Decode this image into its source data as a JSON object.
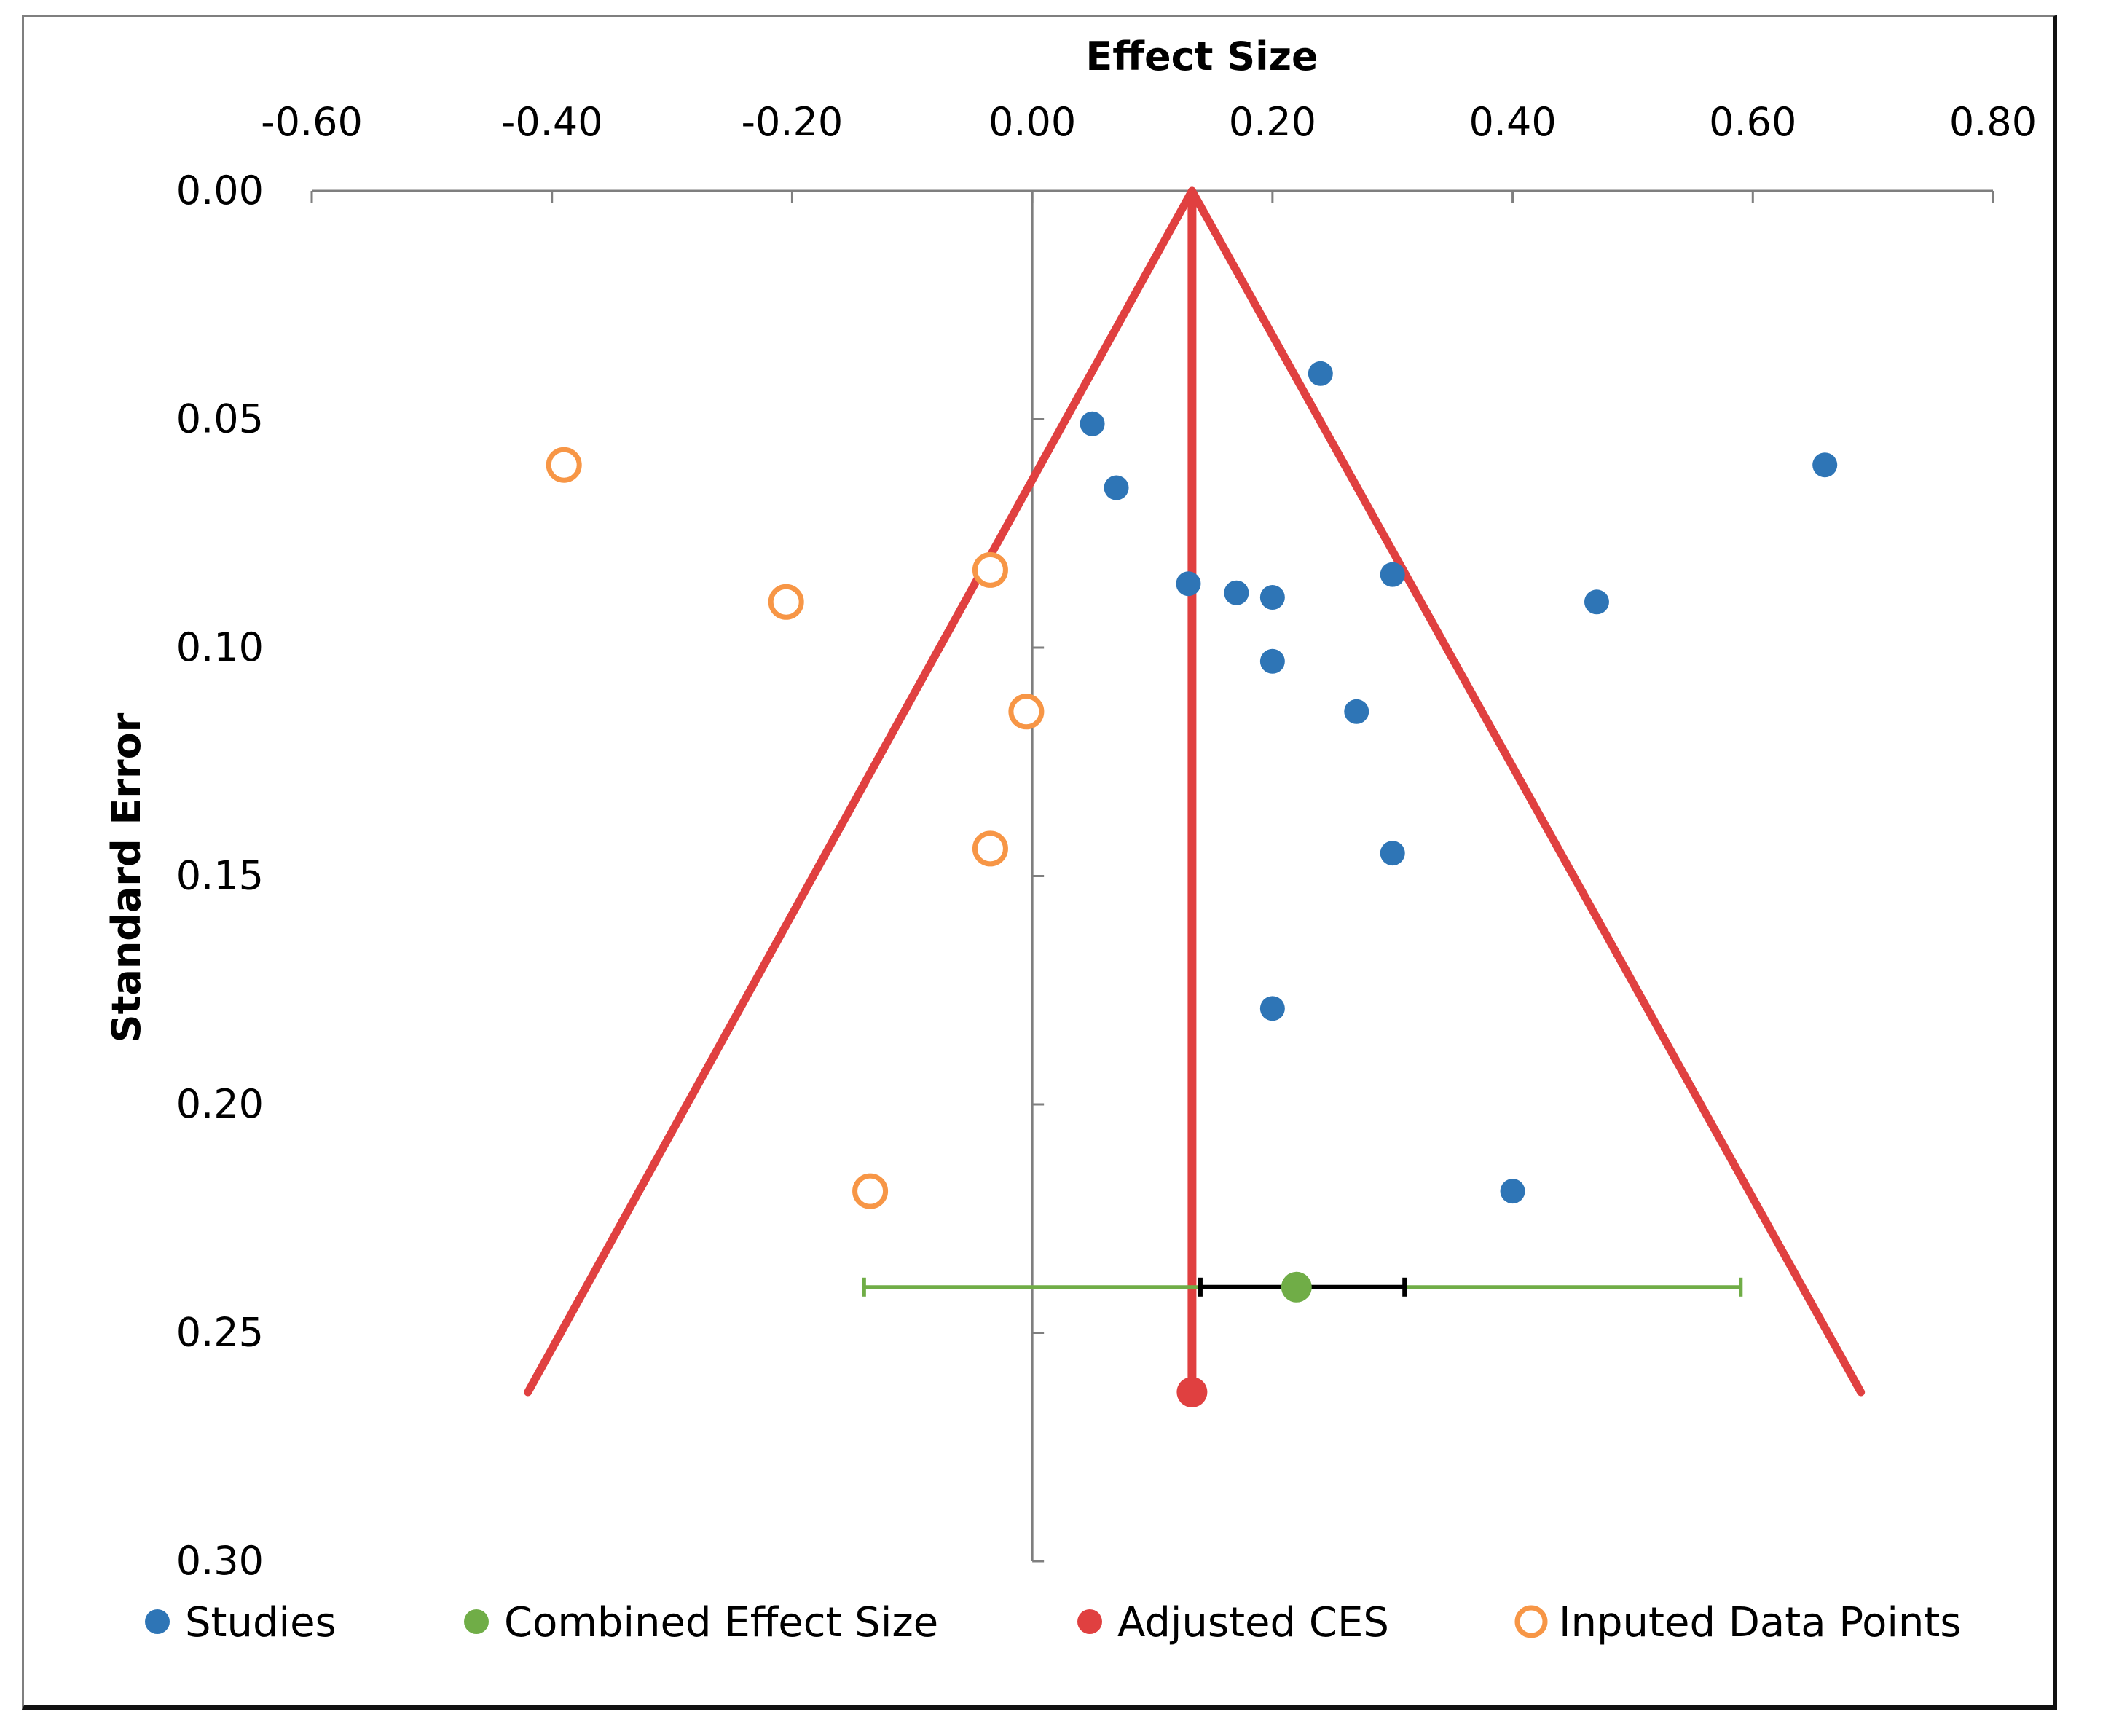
{
  "chart_data": {
    "type": "scatter",
    "title": "",
    "xlabel": "Effect Size",
    "ylabel": "Standard Error",
    "xlim": [
      -0.6,
      0.8
    ],
    "ylim": [
      0.0,
      0.3
    ],
    "y_reversed": true,
    "x_axis_position": "top",
    "x_ticks": [
      -0.6,
      -0.4,
      -0.2,
      0.0,
      0.2,
      0.4,
      0.6,
      0.8
    ],
    "x_tick_labels": [
      "-0.60",
      "-0.40",
      "-0.20",
      "0.00",
      "0.20",
      "0.40",
      "0.60",
      "0.80"
    ],
    "y_ticks": [
      0.0,
      0.05,
      0.1,
      0.15,
      0.2,
      0.25,
      0.3
    ],
    "y_tick_labels": [
      "0.00",
      "0.05",
      "0.10",
      "0.15",
      "0.20",
      "0.25",
      "0.30"
    ],
    "y_axis_crosses_x": 0.0,
    "series": [
      {
        "name": "Studies",
        "marker": "filled-circle",
        "color": "#2e75b6",
        "points": [
          {
            "x": 0.24,
            "y": 0.04
          },
          {
            "x": 0.05,
            "y": 0.051
          },
          {
            "x": 0.66,
            "y": 0.06
          },
          {
            "x": 0.07,
            "y": 0.065
          },
          {
            "x": 0.13,
            "y": 0.086
          },
          {
            "x": 0.17,
            "y": 0.088
          },
          {
            "x": 0.2,
            "y": 0.089
          },
          {
            "x": 0.3,
            "y": 0.084
          },
          {
            "x": 0.47,
            "y": 0.09
          },
          {
            "x": 0.2,
            "y": 0.103
          },
          {
            "x": 0.27,
            "y": 0.114
          },
          {
            "x": 0.3,
            "y": 0.145
          },
          {
            "x": 0.2,
            "y": 0.179
          },
          {
            "x": 0.4,
            "y": 0.219
          }
        ]
      },
      {
        "name": "Combined Effect Size",
        "marker": "filled-circle",
        "color": "#70ad47",
        "points": [
          {
            "x": 0.22,
            "y": 0.24
          }
        ],
        "ci_outer": [
          -0.14,
          0.59
        ],
        "ci_inner": [
          0.14,
          0.31
        ],
        "ci_outer_color": "#70ad47",
        "ci_inner_color": "#000000"
      },
      {
        "name": "Adjusted CES",
        "marker": "filled-circle",
        "color": "#e04040",
        "points": [
          {
            "x": 0.133,
            "y": 0.263
          }
        ]
      },
      {
        "name": "Inputed Data Points",
        "marker": "open-circle",
        "color": "#f79646",
        "points": [
          {
            "x": -0.39,
            "y": 0.06
          },
          {
            "x": -0.035,
            "y": 0.083
          },
          {
            "x": -0.205,
            "y": 0.09
          },
          {
            "x": -0.005,
            "y": 0.114
          },
          {
            "x": -0.035,
            "y": 0.144
          },
          {
            "x": -0.135,
            "y": 0.219
          }
        ]
      }
    ],
    "funnel": {
      "color": "#e04040",
      "apex": {
        "x": 0.133,
        "y": 0.0
      },
      "left_end": {
        "x": -0.42,
        "y": 0.263
      },
      "right_end": {
        "x": 0.69,
        "y": 0.263
      },
      "center_line_end": {
        "x": 0.133,
        "y": 0.263
      }
    },
    "legend_position": "bottom",
    "legend": [
      "Studies",
      "Combined Effect Size",
      "Adjusted CES",
      "Inputed Data Points"
    ],
    "grid": false
  }
}
